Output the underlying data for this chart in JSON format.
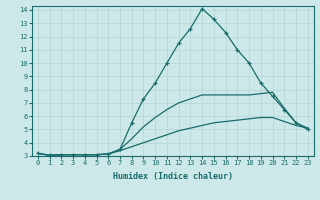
{
  "xlabel": "Humidex (Indice chaleur)",
  "ylabel": "",
  "xlim": [
    -0.5,
    23.5
  ],
  "ylim": [
    3,
    14.3
  ],
  "yticks": [
    3,
    4,
    5,
    6,
    7,
    8,
    9,
    10,
    11,
    12,
    13,
    14
  ],
  "xticks": [
    0,
    1,
    2,
    3,
    4,
    5,
    6,
    7,
    8,
    9,
    10,
    11,
    12,
    13,
    14,
    15,
    16,
    17,
    18,
    19,
    20,
    21,
    22,
    23
  ],
  "bg_color": "#cde8e8",
  "line_color": "#1a6b6b",
  "grid_color": "#b8d8d8",
  "lines": [
    {
      "x": [
        0,
        1,
        2,
        3,
        4,
        5,
        6,
        7,
        8,
        9,
        10,
        11,
        12,
        13,
        14,
        15,
        16,
        17,
        18,
        19,
        20,
        21,
        22,
        23
      ],
      "y": [
        3.2,
        3.05,
        3.1,
        3.1,
        3.1,
        3.1,
        3.15,
        3.5,
        5.5,
        7.3,
        8.5,
        10.0,
        11.5,
        12.6,
        14.1,
        13.3,
        12.3,
        11.0,
        10.0,
        8.5,
        7.5,
        6.5,
        5.5,
        5.0
      ],
      "marker": "+"
    },
    {
      "x": [
        0,
        1,
        2,
        3,
        4,
        5,
        6,
        7,
        8,
        9,
        10,
        11,
        12,
        13,
        14,
        15,
        16,
        17,
        18,
        19,
        20,
        21,
        22,
        23
      ],
      "y": [
        3.2,
        3.05,
        3.1,
        3.1,
        3.1,
        3.1,
        3.15,
        3.5,
        4.3,
        5.2,
        5.9,
        6.5,
        7.0,
        7.3,
        7.6,
        7.6,
        7.6,
        7.6,
        7.6,
        7.7,
        7.8,
        6.6,
        5.5,
        5.1
      ],
      "marker": null
    },
    {
      "x": [
        0,
        1,
        2,
        3,
        4,
        5,
        6,
        7,
        8,
        9,
        10,
        11,
        12,
        13,
        14,
        15,
        16,
        17,
        18,
        19,
        20,
        21,
        22,
        23
      ],
      "y": [
        3.2,
        3.05,
        3.1,
        3.1,
        3.1,
        3.1,
        3.15,
        3.4,
        3.7,
        4.0,
        4.3,
        4.6,
        4.9,
        5.1,
        5.3,
        5.5,
        5.6,
        5.7,
        5.8,
        5.9,
        5.9,
        5.6,
        5.3,
        5.1
      ],
      "marker": null
    }
  ]
}
